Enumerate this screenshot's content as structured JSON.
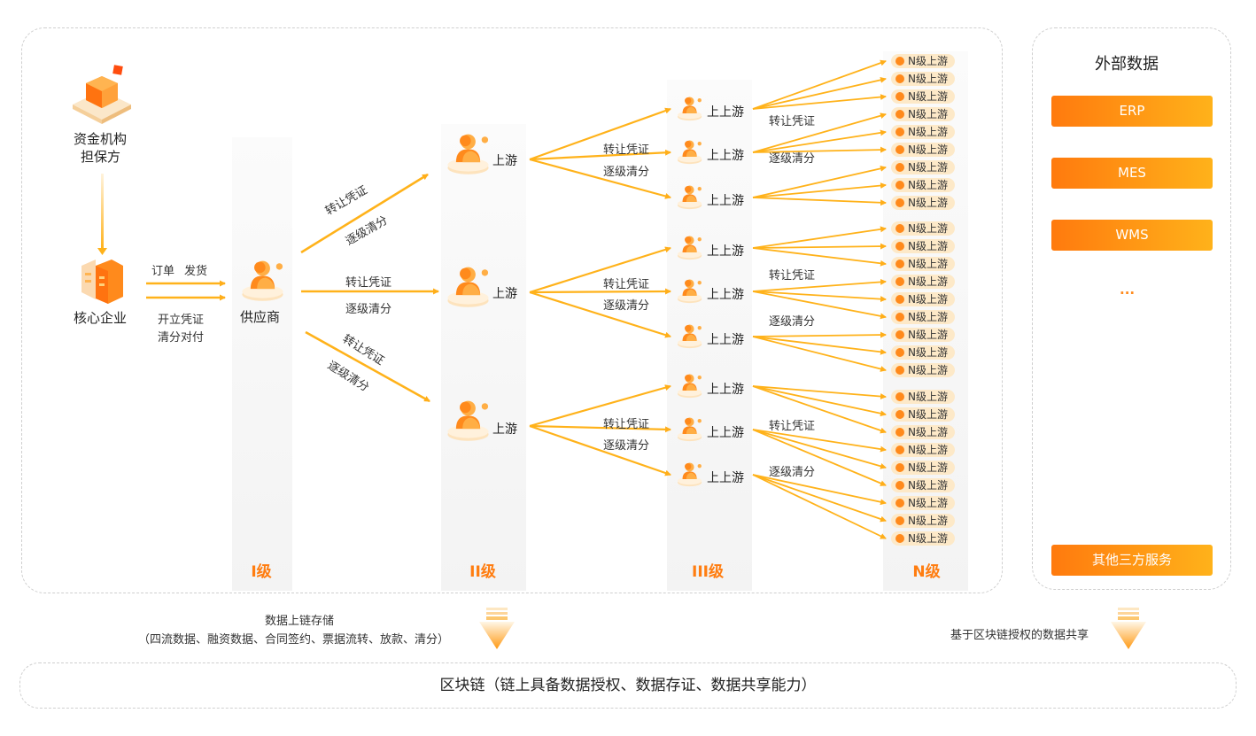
{
  "finance": {
    "line1": "资金机构",
    "line2": "担保方"
  },
  "core": {
    "label": "核心企业",
    "order_labels": [
      "订单",
      "发货"
    ],
    "pay_line1": "开立凭证",
    "pay_line2": "清分对付"
  },
  "supplier": {
    "label": "供应商"
  },
  "levels": [
    "I级",
    "II级",
    "III级",
    "N级"
  ],
  "upstream_label": "上游",
  "upstream2_label": "上上游",
  "n_label": "N级上游",
  "flow": {
    "transfer": "转让凭证",
    "clear": "逐级清分"
  },
  "external": {
    "title": "外部数据",
    "items": [
      "ERP",
      "MES",
      "WMS"
    ],
    "more": "...",
    "other": "其他三方服务"
  },
  "bottom": {
    "store_line1": "数据上链存储",
    "store_line2": "（四流数据、融资数据、合同签约、票据流转、放款、清分）",
    "share": "基于区块链授权的数据共享",
    "blockchain": "区块链（链上具备数据授权、数据存证、数据共享能力）"
  },
  "colors": {
    "accent": "#ff7d10",
    "arrow": "#ffb21a",
    "tag_bg": "#fde9c8"
  }
}
